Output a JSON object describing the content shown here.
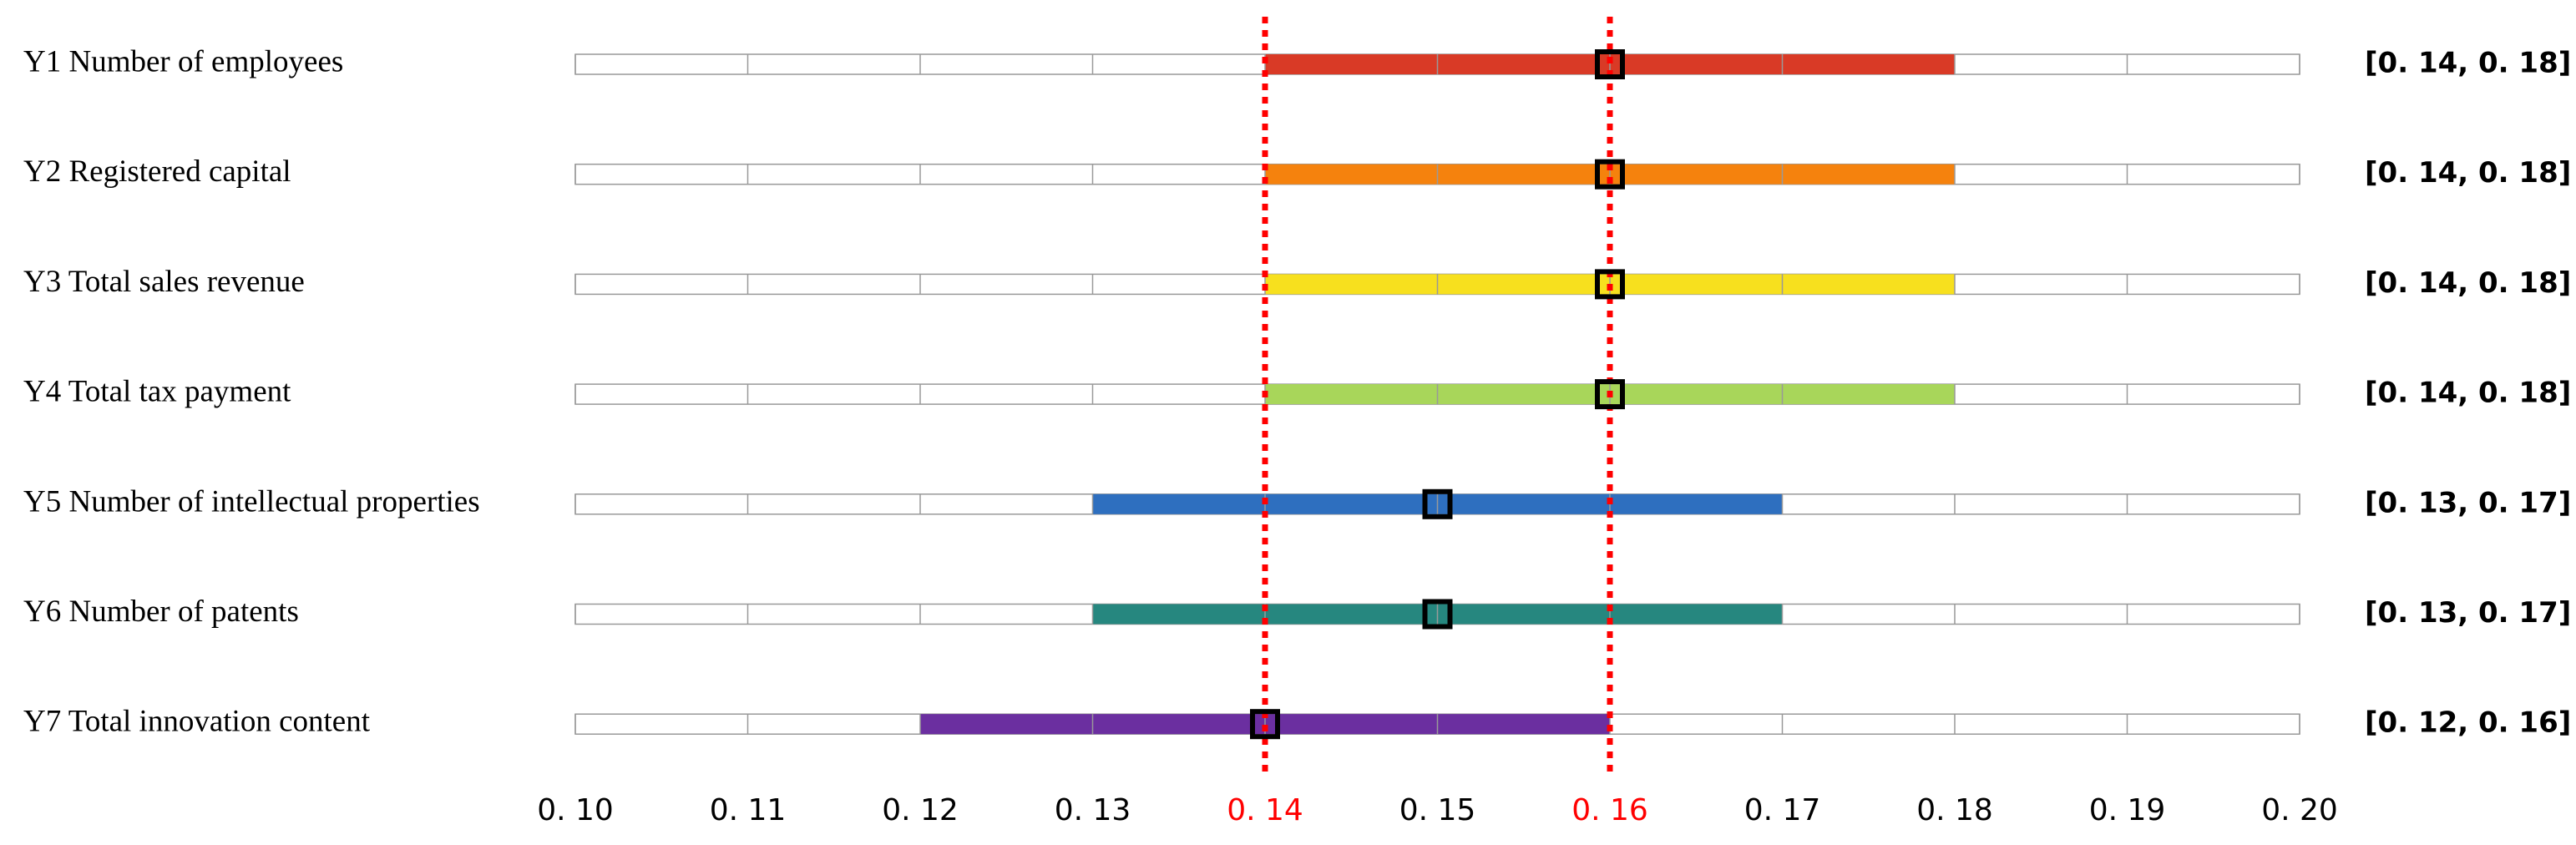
{
  "chart_data": {
    "type": "interval",
    "categories": [
      "Y1 Number of employees",
      "Y2 Registered capital",
      "Y3 Total sales revenue",
      "Y4 Total tax payment",
      "Y5 Number of intellectual properties",
      "Y6 Number of patents",
      "Y7 Total innovation content"
    ],
    "low": [
      0.14,
      0.14,
      0.14,
      0.14,
      0.13,
      0.13,
      0.12
    ],
    "high": [
      0.18,
      0.18,
      0.18,
      0.18,
      0.17,
      0.17,
      0.16
    ],
    "mid": [
      0.16,
      0.16,
      0.16,
      0.16,
      0.15,
      0.15,
      0.14
    ],
    "value_labels": [
      "[0. 14, 0. 18]",
      "[0. 14, 0. 18]",
      "[0. 14, 0. 18]",
      "[0. 14, 0. 18]",
      "[0. 13, 0. 17]",
      "[0. 13, 0. 17]",
      "[0. 12, 0. 16]"
    ],
    "colors": [
      "#d93a26",
      "#f5820d",
      "#f7e01e",
      "#a8d65a",
      "#2e6fbf",
      "#26877f",
      "#6b2fa0"
    ],
    "xlim": [
      0.1,
      0.2
    ],
    "xticks": [
      {
        "value": 0.1,
        "label": "0. 10"
      },
      {
        "value": 0.11,
        "label": "0. 11"
      },
      {
        "value": 0.12,
        "label": "0. 12"
      },
      {
        "value": 0.13,
        "label": "0. 13"
      },
      {
        "value": 0.14,
        "label": "0. 14"
      },
      {
        "value": 0.15,
        "label": "0. 15"
      },
      {
        "value": 0.16,
        "label": "0. 16"
      },
      {
        "value": 0.17,
        "label": "0. 17"
      },
      {
        "value": 0.18,
        "label": "0. 18"
      },
      {
        "value": 0.19,
        "label": "0. 19"
      },
      {
        "value": 0.2,
        "label": "0. 20"
      }
    ],
    "reference_lines": [
      0.14,
      0.16
    ],
    "reference_color": "#ff0000"
  }
}
